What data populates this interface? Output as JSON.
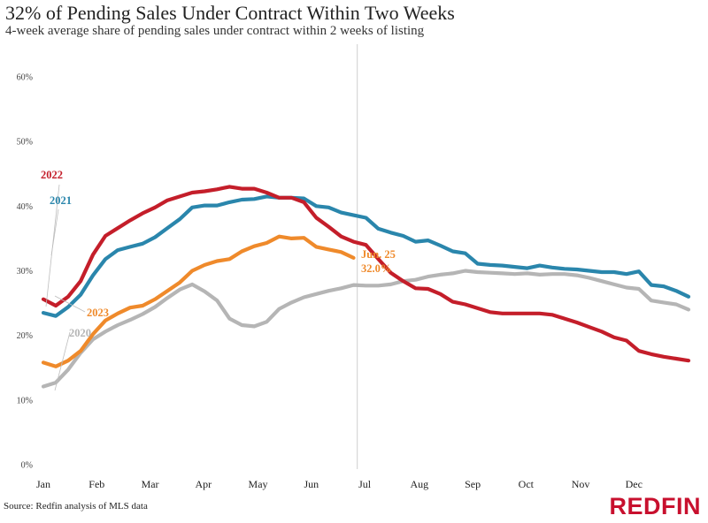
{
  "header": {
    "title": "32% of Pending Sales Under Contract Within Two Weeks",
    "subtitle": "4-week average share of pending sales under contract within 2 weeks of listing"
  },
  "footer": {
    "source": "Source: Redfin analysis of MLS data",
    "logo": "REDFIN"
  },
  "chart_data": {
    "type": "line",
    "title": "32% of Pending Sales Under Contract Within Two Weeks",
    "subtitle": "4-week average share of pending sales under contract within 2 weeks of listing",
    "xlabel": "",
    "ylabel": "",
    "x_unit": "week of year",
    "xlim": [
      1,
      52
    ],
    "ylim": [
      0,
      60
    ],
    "y_ticks": [
      0,
      10,
      20,
      30,
      40,
      50,
      60
    ],
    "y_tick_labels": [
      "0%",
      "10%",
      "20%",
      "30%",
      "40%",
      "50%",
      "60%"
    ],
    "months": [
      "Jan",
      "Feb",
      "Mar",
      "Apr",
      "May",
      "Jun",
      "Jul",
      "Aug",
      "Sep",
      "Oct",
      "Nov",
      "Dec"
    ],
    "month_weeks": [
      1,
      5.3,
      9.6,
      13.9,
      18.3,
      22.6,
      26.9,
      31.3,
      35.6,
      39.9,
      44.3,
      48.6
    ],
    "reference_week": 26.3,
    "grid": false,
    "annotation": {
      "label": "Jun. 25",
      "value_text": "32.0%",
      "week": 26.3,
      "value": 32.0
    },
    "series": [
      {
        "name": "2020",
        "color": "#b5b5b5",
        "values": [
          12.1,
          12.7,
          14.7,
          17.3,
          19.4,
          20.6,
          21.6,
          22.4,
          23.3,
          24.4,
          25.8,
          27.1,
          27.9,
          26.8,
          25.4,
          22.6,
          21.6,
          21.4,
          22.1,
          24.1,
          25.1,
          25.9,
          26.4,
          26.9,
          27.3,
          27.8,
          27.7,
          27.7,
          27.9,
          28.4,
          28.6,
          29.1,
          29.4,
          29.6,
          30.0,
          29.8,
          29.7,
          29.6,
          29.5,
          29.6,
          29.4,
          29.5,
          29.5,
          29.3,
          28.9,
          28.4,
          27.9,
          27.4,
          27.2,
          25.4,
          25.1,
          24.8,
          24.0
        ],
        "weeks": [
          1,
          2,
          3,
          4,
          5,
          6,
          7,
          8,
          9,
          10,
          11,
          12,
          13,
          14,
          15,
          16,
          17,
          18,
          19,
          20,
          21,
          22,
          23,
          24,
          25,
          26,
          27,
          28,
          29,
          30,
          31,
          32,
          33,
          34,
          35,
          36,
          37,
          38,
          39,
          40,
          41,
          42,
          43,
          44,
          45,
          46,
          47,
          48,
          49,
          50,
          51,
          52,
          53
        ]
      },
      {
        "name": "2021",
        "color": "#2a86ac",
        "values": [
          23.5,
          23.0,
          24.4,
          26.3,
          29.3,
          31.8,
          33.2,
          33.7,
          34.2,
          35.2,
          36.6,
          38.0,
          39.8,
          40.1,
          40.1,
          40.6,
          41.0,
          41.1,
          41.5,
          41.3,
          41.3,
          41.2,
          40.0,
          39.8,
          39.0,
          38.6,
          38.2,
          36.5,
          35.9,
          35.4,
          34.5,
          34.7,
          33.9,
          33.0,
          32.7,
          31.1,
          30.9,
          30.8,
          30.6,
          30.4,
          30.8,
          30.5,
          30.3,
          30.2,
          30.0,
          29.8,
          29.8,
          29.5,
          29.9,
          27.8,
          27.6,
          26.9,
          26.0
        ],
        "weeks": [
          1,
          2,
          3,
          4,
          5,
          6,
          7,
          8,
          9,
          10,
          11,
          12,
          13,
          14,
          15,
          16,
          17,
          18,
          19,
          20,
          21,
          22,
          23,
          24,
          25,
          26,
          27,
          28,
          29,
          30,
          31,
          32,
          33,
          34,
          35,
          36,
          37,
          38,
          39,
          40,
          41,
          42,
          43,
          44,
          45,
          46,
          47,
          48,
          49,
          50,
          51,
          52,
          53
        ]
      },
      {
        "name": "2022",
        "color": "#c41e2a",
        "values": [
          25.6,
          24.6,
          26.0,
          28.4,
          32.5,
          35.4,
          36.6,
          37.8,
          38.9,
          39.8,
          40.9,
          41.5,
          42.1,
          42.3,
          42.6,
          43.0,
          42.7,
          42.7,
          42.1,
          41.3,
          41.3,
          40.6,
          38.2,
          36.8,
          35.3,
          34.5,
          34.0,
          31.8,
          29.7,
          28.4,
          27.3,
          27.2,
          26.4,
          25.2,
          24.8,
          24.2,
          23.6,
          23.4,
          23.4,
          23.4,
          23.4,
          23.2,
          22.6,
          22.0,
          21.3,
          20.6,
          19.7,
          19.2,
          17.6,
          17.1,
          16.7,
          16.4,
          16.1
        ],
        "weeks": [
          1,
          2,
          3,
          4,
          5,
          6,
          7,
          8,
          9,
          10,
          11,
          12,
          13,
          14,
          15,
          16,
          17,
          18,
          19,
          20,
          21,
          22,
          23,
          24,
          25,
          26,
          27,
          28,
          29,
          30,
          31,
          32,
          33,
          34,
          35,
          36,
          37,
          38,
          39,
          40,
          41,
          42,
          43,
          44,
          45,
          46,
          47,
          48,
          49,
          50,
          51,
          52,
          53
        ]
      },
      {
        "name": "2023",
        "color": "#ef8a2b",
        "values": [
          15.8,
          15.2,
          16.1,
          17.6,
          20.2,
          22.3,
          23.4,
          24.3,
          24.6,
          25.6,
          26.9,
          28.2,
          30.0,
          30.9,
          31.5,
          31.8,
          33.0,
          33.8,
          34.3,
          35.3,
          35.0,
          35.1,
          33.7,
          33.3,
          32.9,
          32.0
        ],
        "weeks": [
          1,
          2,
          3,
          4,
          5,
          6,
          7,
          8,
          9,
          10,
          11,
          12,
          13,
          14,
          15,
          16,
          17,
          18,
          19,
          20,
          21,
          22,
          23,
          24,
          25,
          26
        ]
      }
    ]
  }
}
